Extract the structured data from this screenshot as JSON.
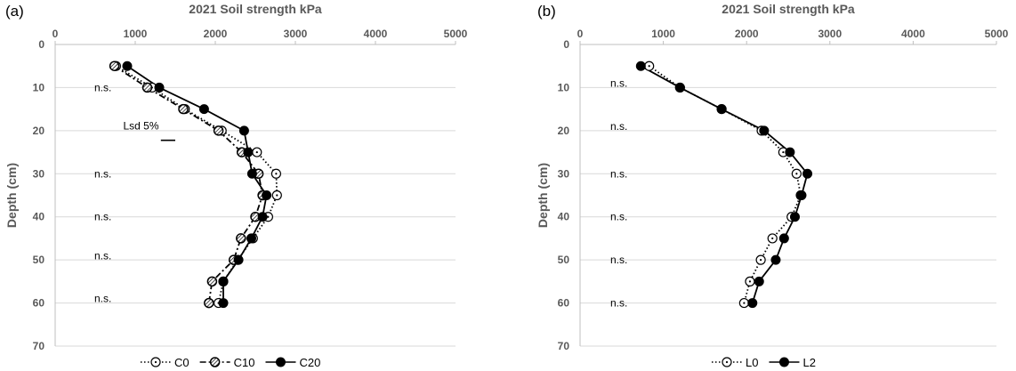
{
  "chart_data": [
    {
      "type": "line",
      "panel_label": "(a)",
      "title": "2021 Soil strength  kPa",
      "xlabel": "",
      "ylabel": "Depth (cm)",
      "xlim": [
        0,
        5000
      ],
      "ylim": [
        70,
        0
      ],
      "x_ticks": [
        0,
        1000,
        2000,
        3000,
        4000,
        5000
      ],
      "y_ticks": [
        0,
        10,
        20,
        30,
        40,
        50,
        60,
        70
      ],
      "y_inverted": true,
      "legend_position": "bottom",
      "series": [
        {
          "name": "C0",
          "line": "dotted",
          "marker": "open-circle-dot",
          "x": [
            760,
            1210,
            1620,
            2080,
            2520,
            2760,
            2770,
            2660,
            2470,
            2280,
            2100,
            2040
          ],
          "y": [
            5,
            10,
            15,
            20,
            25,
            30,
            35,
            40,
            45,
            50,
            55,
            60
          ]
        },
        {
          "name": "C10",
          "line": "dashdot",
          "marker": "hatched-circle",
          "x": [
            740,
            1150,
            1600,
            2040,
            2330,
            2540,
            2590,
            2500,
            2320,
            2230,
            1960,
            1920
          ],
          "y": [
            5,
            10,
            15,
            20,
            25,
            30,
            35,
            40,
            45,
            50,
            55,
            60
          ]
        },
        {
          "name": "C20",
          "line": "solid",
          "marker": "filled-circle",
          "x": [
            900,
            1300,
            1860,
            2360,
            2410,
            2460,
            2640,
            2590,
            2450,
            2290,
            2100,
            2100
          ],
          "y": [
            5,
            10,
            15,
            20,
            25,
            30,
            35,
            40,
            45,
            50,
            55,
            60
          ]
        }
      ],
      "annotations": [
        {
          "text": "n.s.",
          "depth": 10
        },
        {
          "text": "n.s.",
          "depth": 30
        },
        {
          "text": "n.s.",
          "depth": 40
        },
        {
          "text": "n.s.",
          "depth": 49
        },
        {
          "text": "n.s.",
          "depth": 59
        }
      ],
      "lsd": {
        "label": "Lsd 5%",
        "depth": 21
      }
    },
    {
      "type": "line",
      "panel_label": "(b)",
      "title": "2021 Soil strength  kPa",
      "xlabel": "",
      "ylabel": "Depth (cm)",
      "xlim": [
        0,
        5000
      ],
      "ylim": [
        70,
        0
      ],
      "x_ticks": [
        0,
        1000,
        2000,
        3000,
        4000,
        5000
      ],
      "y_ticks": [
        0,
        10,
        20,
        30,
        40,
        50,
        60,
        70
      ],
      "y_inverted": true,
      "legend_position": "bottom",
      "series": [
        {
          "name": "L0",
          "line": "dotted",
          "marker": "open-circle-dot",
          "x": [
            830,
            1200,
            1700,
            2180,
            2440,
            2600,
            2650,
            2540,
            2310,
            2170,
            2040,
            1970
          ],
          "y": [
            5,
            10,
            15,
            20,
            25,
            30,
            35,
            40,
            45,
            50,
            55,
            60
          ]
        },
        {
          "name": "L2",
          "line": "solid",
          "marker": "filled-circle",
          "x": [
            730,
            1200,
            1700,
            2210,
            2520,
            2730,
            2660,
            2580,
            2450,
            2350,
            2150,
            2070
          ],
          "y": [
            5,
            10,
            15,
            20,
            25,
            30,
            35,
            40,
            45,
            50,
            55,
            60
          ]
        }
      ],
      "annotations": [
        {
          "text": "n.s.",
          "depth": 9
        },
        {
          "text": "n.s.",
          "depth": 19
        },
        {
          "text": "n.s.",
          "depth": 30
        },
        {
          "text": "n.s.",
          "depth": 40
        },
        {
          "text": "n.s.",
          "depth": 50
        },
        {
          "text": "n.s.",
          "depth": 60
        }
      ]
    }
  ]
}
